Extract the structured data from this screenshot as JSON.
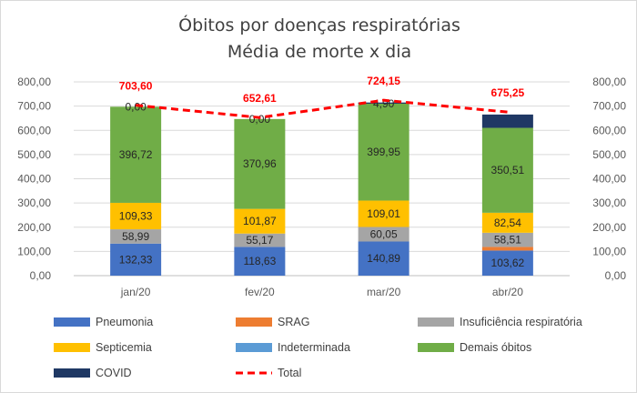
{
  "chart_data": {
    "type": "bar",
    "stacked": true,
    "title": "Óbitos por doenças respiratórias",
    "subtitle": "Média de morte x dia",
    "categories": [
      "jan/20",
      "fev/20",
      "mar/20",
      "abr/20"
    ],
    "y_ticks": [
      "0,00",
      "100,00",
      "200,00",
      "300,00",
      "400,00",
      "500,00",
      "600,00",
      "700,00",
      "800,00"
    ],
    "ylim": [
      0,
      800
    ],
    "grid": true,
    "legend_position": "bottom",
    "series": [
      {
        "name": "Pneumonia",
        "color": "#4472c4",
        "values": [
          132.33,
          118.63,
          140.89,
          103.62
        ],
        "labels": [
          "132,33",
          "118,63",
          "140,89",
          "103,62"
        ]
      },
      {
        "name": "SRAG",
        "color": "#ed7d31",
        "values": [
          0,
          0,
          0,
          15
        ],
        "labels": [
          "",
          "",
          "",
          ""
        ]
      },
      {
        "name": "Insuficiência respiratória",
        "color": "#a5a5a5",
        "values": [
          58.99,
          55.17,
          60.05,
          58.51
        ],
        "labels": [
          "58,99",
          "55,17",
          "60,05",
          "58,51"
        ]
      },
      {
        "name": "Septicemia",
        "color": "#ffc000",
        "values": [
          109.33,
          101.87,
          109.01,
          82.54
        ],
        "labels": [
          "109,33",
          "101,87",
          "109,01",
          "82,54"
        ]
      },
      {
        "name": "Indeterminada",
        "color": "#5b9bd5",
        "values": [
          0,
          0,
          0,
          0
        ],
        "labels": [
          "",
          "",
          "",
          ""
        ]
      },
      {
        "name": "Demais óbitos",
        "color": "#70ad47",
        "values": [
          396.72,
          370.96,
          399.95,
          350.51
        ],
        "labels": [
          "396,72",
          "370,96",
          "399,95",
          "350,51"
        ]
      },
      {
        "name": "COVID",
        "color": "#1f3864",
        "values": [
          0.0,
          0.0,
          4.9,
          55
        ],
        "labels": [
          "0,00",
          "0,00",
          "4,90",
          ""
        ]
      }
    ],
    "total": {
      "name": "Total",
      "color": "#ff0000",
      "values": [
        703.6,
        652.61,
        724.15,
        675.25
      ],
      "labels": [
        "703,60",
        "652,61",
        "724,15",
        "675,25"
      ]
    }
  }
}
